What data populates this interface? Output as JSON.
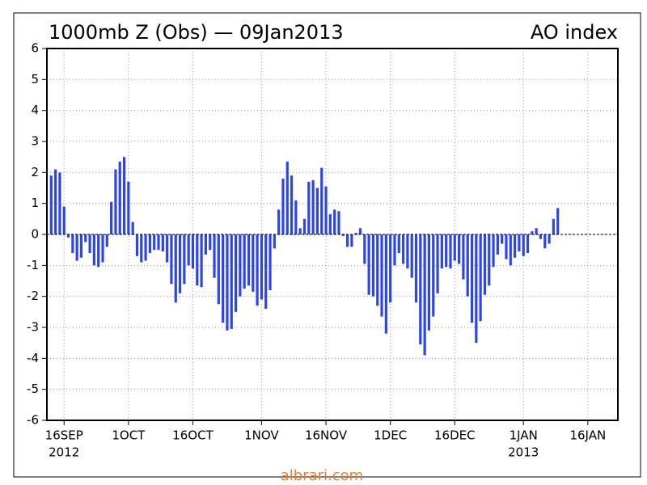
{
  "chart_data": {
    "type": "bar",
    "title": "1000mb Z (Obs) — 09Jan2013",
    "subtitle": "AO index",
    "footer": "albrari.com",
    "color": "#2b45ea",
    "grid": true,
    "zero_line": true,
    "x": [
      "2012-09-13",
      "2012-09-14",
      "2012-09-15",
      "2012-09-16",
      "2012-09-17",
      "2012-09-18",
      "2012-09-19",
      "2012-09-20",
      "2012-09-21",
      "2012-09-22",
      "2012-09-23",
      "2012-09-24",
      "2012-09-25",
      "2012-09-26",
      "2012-09-27",
      "2012-09-28",
      "2012-09-29",
      "2012-09-30",
      "2012-10-01",
      "2012-10-02",
      "2012-10-03",
      "2012-10-04",
      "2012-10-05",
      "2012-10-06",
      "2012-10-07",
      "2012-10-08",
      "2012-10-09",
      "2012-10-10",
      "2012-10-11",
      "2012-10-12",
      "2012-10-13",
      "2012-10-14",
      "2012-10-15",
      "2012-10-16",
      "2012-10-17",
      "2012-10-18",
      "2012-10-19",
      "2012-10-20",
      "2012-10-21",
      "2012-10-22",
      "2012-10-23",
      "2012-10-24",
      "2012-10-25",
      "2012-10-26",
      "2012-10-27",
      "2012-10-28",
      "2012-10-29",
      "2012-10-30",
      "2012-10-31",
      "2012-11-01",
      "2012-11-02",
      "2012-11-03",
      "2012-11-04",
      "2012-11-05",
      "2012-11-06",
      "2012-11-07",
      "2012-11-08",
      "2012-11-09",
      "2012-11-10",
      "2012-11-11",
      "2012-11-12",
      "2012-11-13",
      "2012-11-14",
      "2012-11-15",
      "2012-11-16",
      "2012-11-17",
      "2012-11-18",
      "2012-11-19",
      "2012-11-20",
      "2012-11-21",
      "2012-11-22",
      "2012-11-23",
      "2012-11-24",
      "2012-11-25",
      "2012-11-26",
      "2012-11-27",
      "2012-11-28",
      "2012-11-29",
      "2012-11-30",
      "2012-12-01",
      "2012-12-02",
      "2012-12-03",
      "2012-12-04",
      "2012-12-05",
      "2012-12-06",
      "2012-12-07",
      "2012-12-08",
      "2012-12-09",
      "2012-12-10",
      "2012-12-11",
      "2012-12-12",
      "2012-12-13",
      "2012-12-14",
      "2012-12-15",
      "2012-12-16",
      "2012-12-17",
      "2012-12-18",
      "2012-12-19",
      "2012-12-20",
      "2012-12-21",
      "2012-12-22",
      "2012-12-23",
      "2012-12-24",
      "2012-12-25",
      "2012-12-26",
      "2012-12-27",
      "2012-12-28",
      "2012-12-29",
      "2012-12-30",
      "2012-12-31",
      "2013-01-01",
      "2013-01-02",
      "2013-01-03",
      "2013-01-04",
      "2013-01-05",
      "2013-01-06",
      "2013-01-07",
      "2013-01-08",
      "2013-01-09"
    ],
    "values": [
      1.9,
      2.1,
      2.0,
      0.9,
      -0.1,
      -0.6,
      -0.85,
      -0.75,
      -0.25,
      -0.6,
      -1.0,
      -1.05,
      -0.9,
      -0.4,
      1.05,
      2.1,
      2.35,
      2.5,
      1.7,
      0.4,
      -0.7,
      -0.9,
      -0.85,
      -0.6,
      -0.5,
      -0.5,
      -0.55,
      -0.9,
      -1.6,
      -2.2,
      -1.9,
      -1.6,
      -1.0,
      -1.1,
      -1.65,
      -1.7,
      -0.65,
      -0.5,
      -1.4,
      -2.25,
      -2.85,
      -3.1,
      -3.05,
      -2.5,
      -2.0,
      -1.75,
      -1.65,
      -1.85,
      -2.3,
      -2.1,
      -2.4,
      -1.8,
      -0.45,
      0.8,
      1.8,
      2.35,
      1.9,
      1.1,
      0.2,
      0.5,
      1.7,
      1.75,
      1.5,
      2.15,
      1.55,
      0.65,
      0.8,
      0.75,
      -0.05,
      -0.4,
      -0.4,
      0.05,
      0.2,
      -0.95,
      -1.95,
      -2.0,
      -2.3,
      -2.65,
      -3.2,
      -2.2,
      -1.0,
      -0.6,
      -0.95,
      -1.1,
      -1.4,
      -2.2,
      -3.55,
      -3.9,
      -3.1,
      -2.65,
      -1.9,
      -1.1,
      -1.05,
      -1.1,
      -0.85,
      -0.95,
      -1.45,
      -2.0,
      -2.85,
      -3.5,
      -2.8,
      -1.95,
      -1.65,
      -1.05,
      -0.65,
      -0.3,
      -0.8,
      -1.0,
      -0.75,
      -0.55,
      -0.7,
      -0.6,
      0.1,
      0.2,
      -0.15,
      -0.45,
      -0.3,
      0.5,
      0.85
    ],
    "xlim": [
      "2012-09-12",
      "2013-01-23"
    ],
    "xticks": [
      {
        "value": "2012-09-16",
        "label": "16SEP"
      },
      {
        "value": "2012-10-01",
        "label": "1OCT"
      },
      {
        "value": "2012-10-16",
        "label": "16OCT"
      },
      {
        "value": "2012-11-01",
        "label": "1NOV"
      },
      {
        "value": "2012-11-16",
        "label": "16NOV"
      },
      {
        "value": "2012-12-01",
        "label": "1DEC"
      },
      {
        "value": "2012-12-16",
        "label": "16DEC"
      },
      {
        "value": "2013-01-01",
        "label": "1JAN"
      },
      {
        "value": "2013-01-16",
        "label": "16JAN"
      }
    ],
    "x_year_labels": [
      {
        "value": "2012-09-16",
        "label": "2012"
      },
      {
        "value": "2013-01-01",
        "label": "2013"
      }
    ],
    "ylim": [
      -6,
      6
    ],
    "yticks": [
      -6,
      -5,
      -4,
      -3,
      -2,
      -1,
      0,
      1,
      2,
      3,
      4,
      5,
      6
    ]
  }
}
